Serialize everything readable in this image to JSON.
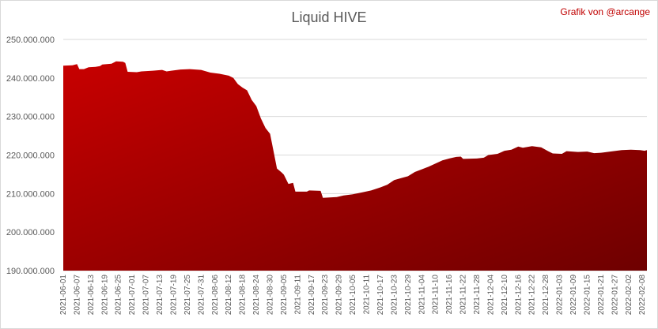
{
  "chart_data": {
    "type": "area",
    "title": "Liquid HIVE",
    "credit": "Grafik von @arcange",
    "xlabel": "",
    "ylabel": "",
    "ylim": [
      190000000,
      250000000
    ],
    "y_ticks": [
      190000000,
      200000000,
      210000000,
      220000000,
      230000000,
      240000000,
      250000000
    ],
    "y_tick_labels": [
      "190.000.000",
      "200.000.000",
      "210.000.000",
      "220.000.000",
      "230.000.000",
      "240.000.000",
      "250.000.000"
    ],
    "x_tick_labels": [
      "2021-06-01",
      "2021-06-07",
      "2021-06-13",
      "2021-06-19",
      "2021-06-25",
      "2021-07-01",
      "2021-07-07",
      "2021-07-13",
      "2021-07-19",
      "2021-07-25",
      "2021-07-31",
      "2021-08-06",
      "2021-08-12",
      "2021-08-18",
      "2021-08-24",
      "2021-08-30",
      "2021-09-05",
      "2021-09-11",
      "2021-09-17",
      "2021-09-23",
      "2021-09-29",
      "2021-10-05",
      "2021-10-11",
      "2021-10-17",
      "2021-10-23",
      "2021-10-29",
      "2021-11-04",
      "2021-11-10",
      "2021-11-16",
      "2021-11-22",
      "2021-11-28",
      "2021-12-04",
      "2021-12-10",
      "2021-12-16",
      "2021-12-22",
      "2021-12-28",
      "2022-01-03",
      "2022-01-09",
      "2022-01-15",
      "2022-01-21",
      "2022-01-27",
      "2022-02-02",
      "2022-02-08"
    ],
    "grid": true,
    "legend": "none",
    "colors": {
      "fill_top": "#c80000",
      "fill_bottom": "#6e0000",
      "grid": "#d9d9d9"
    },
    "x_start": "2021-06-01",
    "x_end": "2022-02-10",
    "series": [
      {
        "points": [
          [
            "2021-06-01",
            243200000
          ],
          [
            "2021-06-05",
            243300000
          ],
          [
            "2021-06-07",
            243600000
          ],
          [
            "2021-06-08",
            242300000
          ],
          [
            "2021-06-10",
            242300000
          ],
          [
            "2021-06-12",
            242800000
          ],
          [
            "2021-06-15",
            242900000
          ],
          [
            "2021-06-17",
            243100000
          ],
          [
            "2021-06-18",
            243500000
          ],
          [
            "2021-06-22",
            243700000
          ],
          [
            "2021-06-24",
            244300000
          ],
          [
            "2021-06-27",
            244200000
          ],
          [
            "2021-06-28",
            243900000
          ],
          [
            "2021-06-29",
            241600000
          ],
          [
            "2021-07-03",
            241500000
          ],
          [
            "2021-07-05",
            241700000
          ],
          [
            "2021-07-10",
            241900000
          ],
          [
            "2021-07-14",
            242100000
          ],
          [
            "2021-07-16",
            241700000
          ],
          [
            "2021-07-18",
            241900000
          ],
          [
            "2021-07-22",
            242200000
          ],
          [
            "2021-07-26",
            242300000
          ],
          [
            "2021-07-31",
            242100000
          ],
          [
            "2021-08-04",
            241400000
          ],
          [
            "2021-08-08",
            241100000
          ],
          [
            "2021-08-12",
            240600000
          ],
          [
            "2021-08-14",
            240000000
          ],
          [
            "2021-08-16",
            238400000
          ],
          [
            "2021-08-18",
            237500000
          ],
          [
            "2021-08-20",
            236800000
          ],
          [
            "2021-08-22",
            234300000
          ],
          [
            "2021-08-24",
            232700000
          ],
          [
            "2021-08-26",
            229500000
          ],
          [
            "2021-08-28",
            227000000
          ],
          [
            "2021-08-30",
            225500000
          ],
          [
            "2021-08-31",
            222500000
          ],
          [
            "2021-09-01",
            219500000
          ],
          [
            "2021-09-02",
            216500000
          ],
          [
            "2021-09-04",
            215500000
          ],
          [
            "2021-09-05",
            214900000
          ],
          [
            "2021-09-07",
            212500000
          ],
          [
            "2021-09-09",
            212800000
          ],
          [
            "2021-09-10",
            210500000
          ],
          [
            "2021-09-15",
            210500000
          ],
          [
            "2021-09-16",
            210800000
          ],
          [
            "2021-09-21",
            210700000
          ],
          [
            "2021-09-22",
            208900000
          ],
          [
            "2021-09-28",
            209100000
          ],
          [
            "2021-10-01",
            209500000
          ],
          [
            "2021-10-05",
            209800000
          ],
          [
            "2021-10-09",
            210300000
          ],
          [
            "2021-10-13",
            210800000
          ],
          [
            "2021-10-17",
            211600000
          ],
          [
            "2021-10-20",
            212300000
          ],
          [
            "2021-10-23",
            213500000
          ],
          [
            "2021-10-26",
            214000000
          ],
          [
            "2021-10-29",
            214500000
          ],
          [
            "2021-11-01",
            215600000
          ],
          [
            "2021-11-04",
            216300000
          ],
          [
            "2021-11-07",
            217000000
          ],
          [
            "2021-11-10",
            217800000
          ],
          [
            "2021-11-13",
            218600000
          ],
          [
            "2021-11-16",
            219100000
          ],
          [
            "2021-11-19",
            219500000
          ],
          [
            "2021-11-21",
            219600000
          ],
          [
            "2021-11-22",
            219000000
          ],
          [
            "2021-11-28",
            219100000
          ],
          [
            "2021-12-01",
            219300000
          ],
          [
            "2021-12-03",
            220000000
          ],
          [
            "2021-12-07",
            220300000
          ],
          [
            "2021-12-10",
            221100000
          ],
          [
            "2021-12-13",
            221400000
          ],
          [
            "2021-12-16",
            222200000
          ],
          [
            "2021-12-18",
            221900000
          ],
          [
            "2021-12-22",
            222300000
          ],
          [
            "2021-12-26",
            222000000
          ],
          [
            "2021-12-29",
            221000000
          ],
          [
            "2021-12-31",
            220400000
          ],
          [
            "2022-01-04",
            220300000
          ],
          [
            "2022-01-06",
            221000000
          ],
          [
            "2022-01-11",
            220800000
          ],
          [
            "2022-01-15",
            220900000
          ],
          [
            "2022-01-18",
            220500000
          ],
          [
            "2022-01-21",
            220600000
          ],
          [
            "2022-01-25",
            220900000
          ],
          [
            "2022-01-30",
            221300000
          ],
          [
            "2022-02-03",
            221400000
          ],
          [
            "2022-02-07",
            221300000
          ],
          [
            "2022-02-09",
            221100000
          ],
          [
            "2022-02-10",
            221300000
          ]
        ]
      }
    ]
  }
}
